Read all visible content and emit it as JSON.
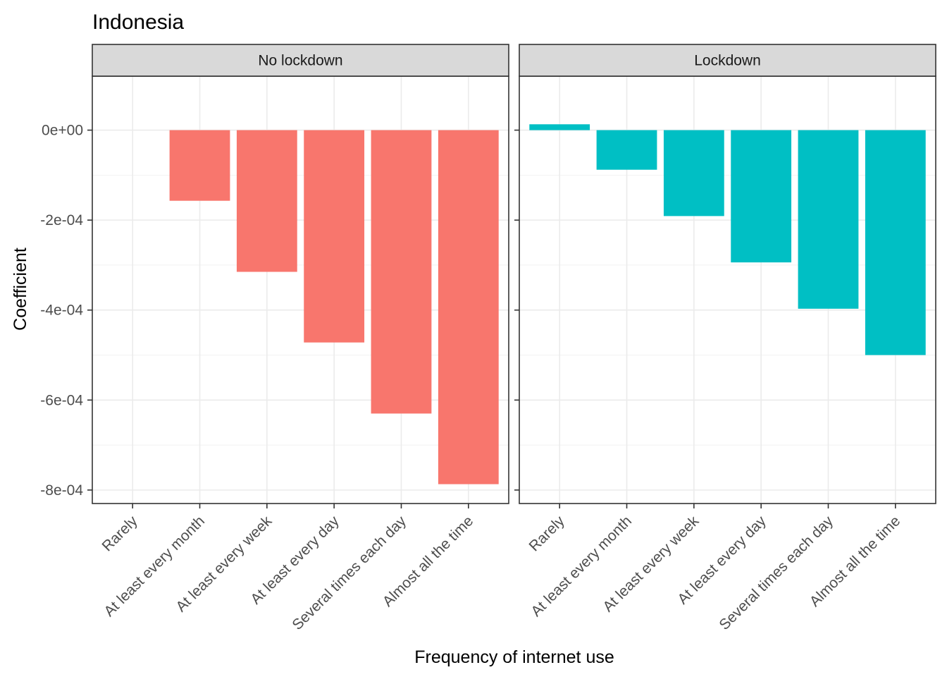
{
  "chart_data": {
    "type": "bar",
    "title": "Indonesia",
    "xlabel": "Frequency of internet use",
    "ylabel": "Coefficient",
    "categories": [
      "Rarely",
      "At least every month",
      "At least every week",
      "At least every day",
      "Several times each day",
      "Almost all the time"
    ],
    "ylim": [
      -0.00083,
      0.00012
    ],
    "yticks": [
      0,
      -0.0002,
      -0.0004,
      -0.0006,
      -0.0008
    ],
    "ytick_labels": [
      "0e+00",
      "-2e-04",
      "-4e-04",
      "-6e-04",
      "-8e-04"
    ],
    "grid": true,
    "legend": "none",
    "panels": [
      {
        "name": "No lockdown",
        "color": "#F8766D",
        "values": [
          0,
          -0.000157,
          -0.000315,
          -0.000472,
          -0.00063,
          -0.000787
        ]
      },
      {
        "name": "Lockdown",
        "color": "#00BFC4",
        "values": [
          1.3e-05,
          -8.8e-05,
          -0.000191,
          -0.000294,
          -0.000397,
          -0.0005
        ]
      }
    ]
  }
}
